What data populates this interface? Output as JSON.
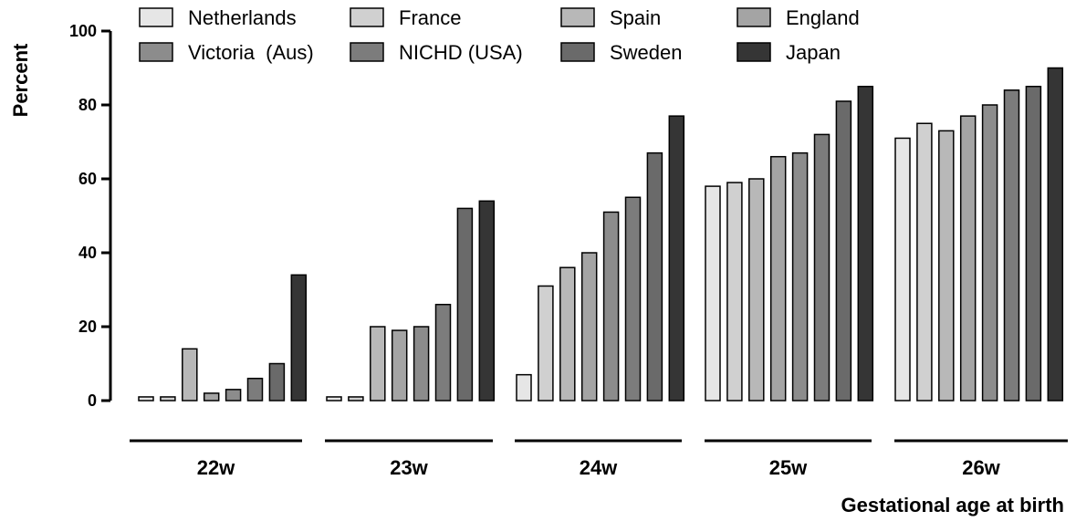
{
  "chart_data": {
    "type": "bar",
    "xlabel": "Gestational age at birth",
    "ylabel": "Percent",
    "ylim": [
      0,
      100
    ],
    "yticks": [
      "0",
      "20",
      "40",
      "60",
      "80",
      "100"
    ],
    "categories": [
      "22w",
      "23w",
      "24w",
      "25w",
      "26w"
    ],
    "legend_position": "top",
    "grid": false,
    "series": [
      {
        "name": "Netherlands",
        "color": "#e6e6e6",
        "values": [
          1,
          1,
          7,
          58,
          71
        ]
      },
      {
        "name": "France",
        "color": "#d0d0d0",
        "values": [
          1,
          1,
          31,
          59,
          75
        ]
      },
      {
        "name": "Spain",
        "color": "#b8b8b8",
        "values": [
          14,
          20,
          36,
          60,
          73
        ]
      },
      {
        "name": "England",
        "color": "#a4a4a4",
        "values": [
          2,
          19,
          40,
          66,
          77
        ]
      },
      {
        "name": "Victoria  (Aus)",
        "color": "#8c8c8c",
        "values": [
          3,
          20,
          51,
          67,
          80
        ]
      },
      {
        "name": "NICHD (USA)",
        "color": "#7c7c7c",
        "values": [
          6,
          26,
          55,
          72,
          84
        ]
      },
      {
        "name": "Sweden",
        "color": "#6a6a6a",
        "values": [
          10,
          52,
          67,
          81,
          85
        ]
      },
      {
        "name": "Japan",
        "color": "#353535",
        "values": [
          34,
          54,
          77,
          85,
          90
        ]
      }
    ]
  }
}
